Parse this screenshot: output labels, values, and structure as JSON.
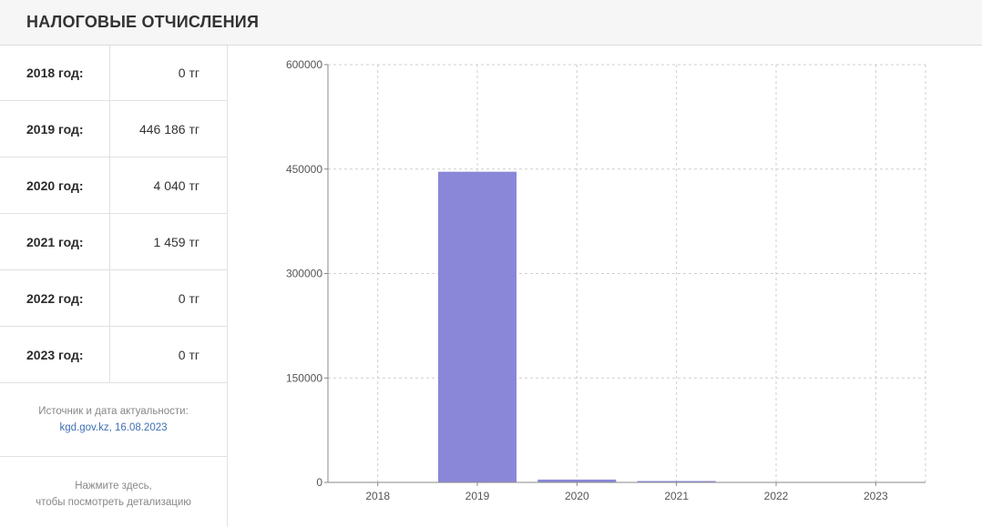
{
  "header": {
    "title": "НАЛОГОВЫЕ ОТЧИСЛЕНИЯ"
  },
  "rows": [
    {
      "year": "2018 год:",
      "value": "0 тг"
    },
    {
      "year": "2019 год:",
      "value": "446 186 тг"
    },
    {
      "year": "2020 год:",
      "value": "4 040 тг"
    },
    {
      "year": "2021 год:",
      "value": "1 459 тг"
    },
    {
      "year": "2022 год:",
      "value": "0 тг"
    },
    {
      "year": "2023 год:",
      "value": "0 тг"
    }
  ],
  "source": {
    "label": "Источник и дата актуальности:",
    "link": "kgd.gov.kz, 16.08.2023"
  },
  "details": {
    "line1": "Нажмите здесь,",
    "line2": "чтобы посмотреть детализацию"
  },
  "chart_data": {
    "type": "bar",
    "categories": [
      "2018",
      "2019",
      "2020",
      "2021",
      "2022",
      "2023"
    ],
    "values": [
      0,
      446186,
      4040,
      1459,
      0,
      0
    ],
    "ylim": [
      0,
      600000
    ],
    "yticks": [
      0,
      150000,
      300000,
      450000,
      600000
    ],
    "grid": true,
    "bar_color": "#8a87d8"
  }
}
